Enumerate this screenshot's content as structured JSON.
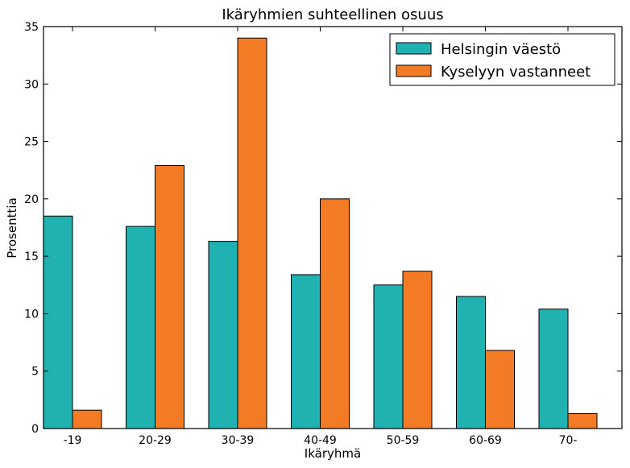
{
  "chart_data": {
    "type": "bar",
    "title": "Ikäryhmien suhteellinen osuus",
    "xlabel": "Ikäryhmä",
    "ylabel": "Prosenttia",
    "ylim": [
      0,
      35
    ],
    "yticks": [
      0,
      5,
      10,
      15,
      20,
      25,
      30,
      35
    ],
    "categories": [
      "-19",
      "20-29",
      "30-39",
      "40-49",
      "50-59",
      "60-69",
      "70-"
    ],
    "series": [
      {
        "name": "Helsingin väestö",
        "color": "#20b2b0",
        "values": [
          18.5,
          17.6,
          16.3,
          13.4,
          12.5,
          11.5,
          10.4
        ]
      },
      {
        "name": "Kyselyyn vastanneet",
        "color": "#f47b26",
        "values": [
          1.6,
          22.9,
          34.0,
          20.0,
          13.7,
          6.8,
          1.3
        ]
      }
    ],
    "legend": "top-right",
    "grid": false
  }
}
